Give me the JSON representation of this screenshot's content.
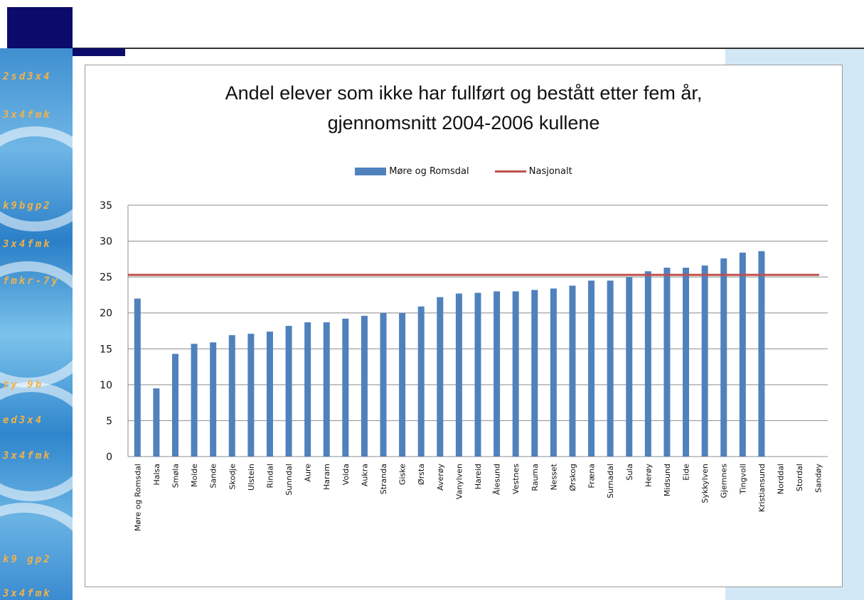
{
  "slide": {
    "strip_texts": [
      "2sd3x4",
      "3x4fmk",
      "k9bgp2",
      "3x4fmk",
      "fmkr-7y",
      "ty  9b",
      "ed3x4",
      "3x4fmk",
      "k9  gp2",
      "3x4fmk"
    ]
  },
  "colors": {
    "bar": "#4f81bd",
    "line": "#c0504d",
    "grid": "#8c8c8c"
  },
  "chart_data": {
    "type": "bar",
    "title": [
      "Andel elever som ikke har fullført og bestått etter fem år,",
      "gjennomsnitt 2004-2006 kullene"
    ],
    "legend_position": "top",
    "grid": true,
    "ylim": [
      0,
      35
    ],
    "yticks": [
      0,
      5,
      10,
      15,
      20,
      25,
      30,
      35
    ],
    "categories": [
      "Møre og Romsdal",
      "Halsa",
      "Smøla",
      "Molde",
      "Sande",
      "Skodje",
      "Ulstein",
      "Rindal",
      "Sunndal",
      "Aure",
      "Haram",
      "Volda",
      "Aukra",
      "Stranda",
      "Giske",
      "Ørsta",
      "Averøy",
      "Vanylven",
      "Hareid",
      "Ålesund",
      "Vestnes",
      "Rauma",
      "Nesset",
      "Ørskog",
      "Fræna",
      "Surnadal",
      "Sula",
      "Herøy",
      "Midsund",
      "Eide",
      "Sykkylven",
      "Gjemnes",
      "Tingvoll",
      "Kristiansund",
      "Norddal",
      "Stordal",
      "Sandøy"
    ],
    "series": [
      {
        "name": "Møre og Romsdal",
        "type": "bar",
        "values": [
          22.0,
          9.5,
          14.3,
          15.7,
          15.9,
          16.9,
          17.1,
          17.4,
          18.2,
          18.7,
          18.7,
          19.2,
          19.6,
          20.0,
          20.0,
          20.9,
          22.2,
          22.7,
          22.8,
          23.0,
          23.0,
          23.2,
          23.4,
          23.8,
          24.5,
          24.5,
          25.0,
          25.8,
          26.3,
          26.3,
          26.6,
          27.6,
          28.4,
          28.6,
          null,
          null,
          null
        ]
      },
      {
        "name": "Nasjonalt",
        "type": "line",
        "value": 25.3
      }
    ]
  }
}
